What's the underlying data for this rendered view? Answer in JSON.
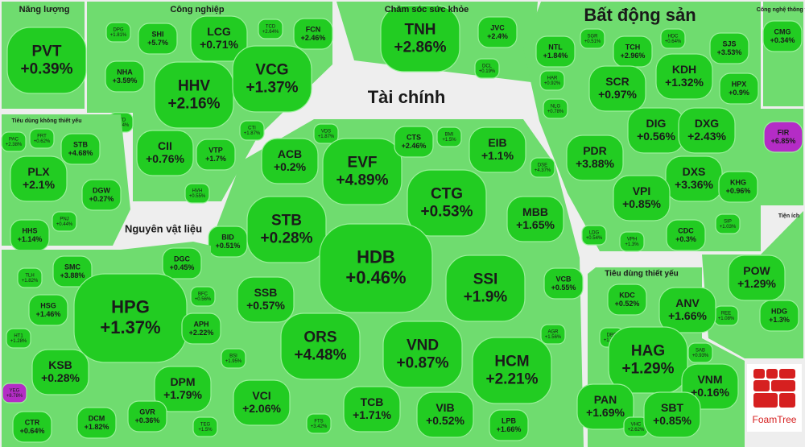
{
  "chart_data": {
    "type": "treemap",
    "color": "#22cc22",
    "logo": "FoamTree",
    "groups": [
      {
        "name": "Năng lượng",
        "categories": [
          "PVT"
        ],
        "values": [
          0.39
        ],
        "value_labels": [
          "+0.39%"
        ]
      },
      {
        "name": "Công nghiệp",
        "categories": [
          "DPG",
          "SHI",
          "LCG",
          "TCD",
          "FCN",
          "NHA",
          "HHV",
          "VCG",
          "CTD",
          "CII",
          "VTP",
          "CTI",
          "HVH"
        ],
        "values": [
          1.81,
          5.7,
          0.71,
          2.64,
          2.46,
          3.59,
          2.16,
          1.37,
          2.74,
          0.76,
          1.7,
          1.87,
          0.55
        ],
        "value_labels": [
          "+1.81%",
          "+5.7%",
          "+0.71%",
          "+2.64%",
          "+2.46%",
          "+3.59%",
          "+2.16%",
          "+1.37%",
          "+2.74%",
          "+0.76%",
          "+1.7%",
          "+1.87%",
          "+0.55%"
        ]
      },
      {
        "name": "Chăm sóc sức khỏe",
        "categories": [
          "TNH",
          "JVC",
          "DCL"
        ],
        "values": [
          2.86,
          2.4,
          0.19
        ],
        "value_labels": [
          "+2.86%",
          "+2.4%",
          "+0.19%"
        ]
      },
      {
        "name": "Bất động sản",
        "categories": [
          "NTL",
          "SGR",
          "TCH",
          "HDC",
          "SJS",
          "HAR",
          "SCR",
          "KDH",
          "HPX",
          "NLG",
          "DIG",
          "DXG",
          "FIR",
          "PDR",
          "DXS",
          "KHG",
          "VPI",
          "LDG",
          "CDC",
          "SIP",
          "VPH"
        ],
        "values": [
          1.84,
          0.51,
          2.96,
          0.64,
          3.53,
          0.92,
          0.97,
          1.32,
          0.9,
          0.78,
          0.56,
          2.43,
          6.85,
          3.88,
          3.36,
          0.96,
          0.85,
          0.54,
          0.3,
          1.03,
          1.3
        ],
        "value_labels": [
          "+1.84%",
          "+0.51%",
          "+2.96%",
          "+0.64%",
          "+3.53%",
          "+0.92%",
          "+0.97%",
          "+1.32%",
          "+0.9%",
          "+0.78%",
          "+0.56%",
          "+2.43%",
          "+6.85%",
          "+3.88%",
          "+3.36%",
          "+0.96%",
          "+0.85%",
          "+0.54%",
          "+0.3%",
          "+1.03%",
          "+1.3%"
        ],
        "colors": [
          null,
          null,
          null,
          null,
          null,
          null,
          null,
          null,
          null,
          null,
          null,
          null,
          "#b42cc6",
          null,
          null,
          null,
          null,
          null,
          null,
          null,
          null
        ]
      },
      {
        "name": "Công nghệ thông tin",
        "categories": [
          "CMG"
        ],
        "values": [
          0.34
        ],
        "value_labels": [
          "+0.34%"
        ]
      },
      {
        "name": "Tài chính",
        "categories": [
          "ACB",
          "VDS",
          "EVF",
          "CTS",
          "BMI",
          "EIB",
          "DSE",
          "BID",
          "STB",
          "CTG",
          "MBB",
          "HDB",
          "SSB",
          "SSI",
          "VCB",
          "ORS",
          "VND",
          "AGR",
          "HCM",
          "BSI",
          "VCI",
          "TCB",
          "VIB",
          "FTS",
          "LPB"
        ],
        "values": [
          0.2,
          1.87,
          4.89,
          2.46,
          1.5,
          1.1,
          4.37,
          0.51,
          0.28,
          0.53,
          1.65,
          0.46,
          0.57,
          1.9,
          0.55,
          4.48,
          0.87,
          1.56,
          2.21,
          1.95,
          2.06,
          1.71,
          0.52,
          3.42,
          1.66
        ],
        "value_labels": [
          "+0.2%",
          "+1.87%",
          "+4.89%",
          "+2.46%",
          "+1.5%",
          "+1.1%",
          "+4.37%",
          "+0.51%",
          "+0.28%",
          "+0.53%",
          "+1.65%",
          "+0.46%",
          "+0.57%",
          "+1.9%",
          "+0.55%",
          "+4.48%",
          "+0.87%",
          "+1.56%",
          "+2.21%",
          "+1.95%",
          "+2.06%",
          "+1.71%",
          "+0.52%",
          "+3.42%",
          "+1.66%"
        ]
      },
      {
        "name": "Tiêu dùng không thiết yếu",
        "categories": [
          "PAC",
          "FRT",
          "STB",
          "PLX",
          "DGW",
          "HHS",
          "PNJ"
        ],
        "values": [
          2.38,
          0.62,
          4.68,
          2.1,
          0.27,
          1.14,
          0.44
        ],
        "value_labels": [
          "+2.38%",
          "+0.62%",
          "+4.68%",
          "+2.1%",
          "+0.27%",
          "+1.14%",
          "+0.44%"
        ]
      },
      {
        "name": "Nguyên vật liệu",
        "categories": [
          "TLH",
          "SMC",
          "DGC",
          "HSG",
          "HPG",
          "BFC",
          "HT1",
          "APH",
          "KSB",
          "DPM",
          "YEG",
          "CTR",
          "DCM",
          "GVR",
          "TEG"
        ],
        "values": [
          1.82,
          3.88,
          0.45,
          1.46,
          1.37,
          0.56,
          1.28,
          2.22,
          0.28,
          1.79,
          8.78,
          0.64,
          1.82,
          0.36,
          1.5
        ],
        "value_labels": [
          "+1.82%",
          "+3.88%",
          "+0.45%",
          "+1.46%",
          "+1.37%",
          "+0.56%",
          "+1.28%",
          "+2.22%",
          "+0.28%",
          "+1.79%",
          "+8.78%",
          "+0.64%",
          "+1.82%",
          "+0.36%",
          "+1.5%"
        ],
        "colors": [
          null,
          null,
          null,
          null,
          null,
          null,
          null,
          null,
          null,
          null,
          "#b42cc6",
          null,
          null,
          null,
          null
        ]
      },
      {
        "name": "Tiện ích",
        "categories": [
          "POW",
          "REE",
          "HDG"
        ],
        "values": [
          1.29,
          1.08,
          1.3
        ],
        "value_labels": [
          "+1.29%",
          "+1.08%",
          "+1.3%"
        ]
      },
      {
        "name": "Tiêu dùng thiết yếu",
        "categories": [
          "KDC",
          "ANV",
          "SAB",
          "DBC",
          "HAG",
          "VNM",
          "PAN",
          "VHC",
          "SBT"
        ],
        "values": [
          0.52,
          1.66,
          0.93,
          1.88,
          1.29,
          0.16,
          1.69,
          2.62,
          0.85
        ],
        "value_labels": [
          "+0.52%",
          "+1.66%",
          "+0.93%",
          "+1.88%",
          "+1.29%",
          "+0.16%",
          "+1.69%",
          "+2.62%",
          "+0.85%"
        ]
      }
    ]
  }
}
